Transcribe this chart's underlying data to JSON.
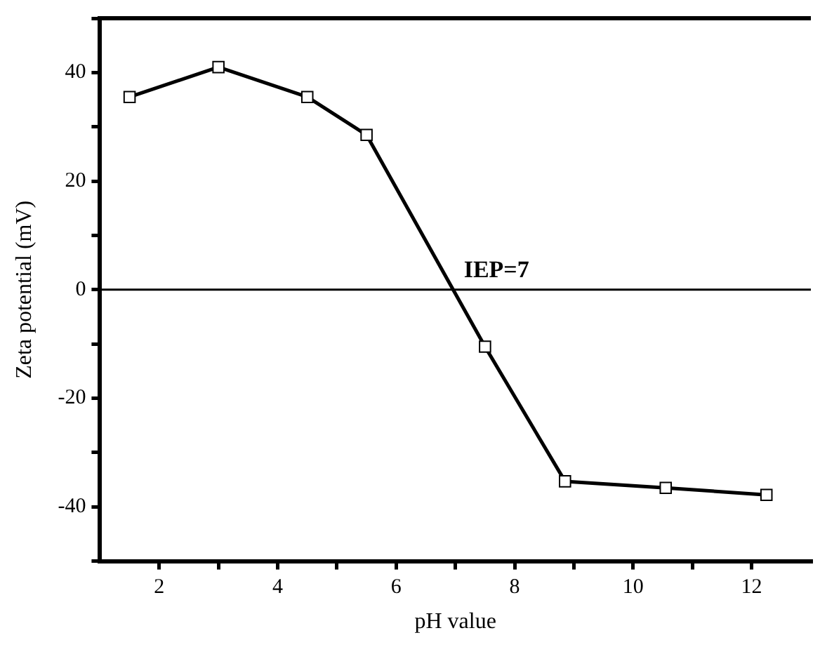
{
  "chart_data": {
    "type": "line",
    "xlabel": "pH value",
    "ylabel": "Zeta potential (mV)",
    "x": [
      1.5,
      3,
      4.5,
      5.5,
      7.5,
      8.85,
      10.55,
      12.25
    ],
    "series": [
      {
        "color": "#000000",
        "values": [
          35.5,
          41,
          35.5,
          28.5,
          -10.5,
          -35.3,
          -36.5,
          -37.8
        ]
      }
    ],
    "xlim": [
      1,
      13
    ],
    "xticks": [
      2,
      {
        "value": 3,
        "label": null
      },
      4,
      {
        "value": 5,
        "label": null
      },
      6,
      {
        "value": 7,
        "label": null
      },
      8,
      {
        "value": 9,
        "label": null
      },
      10,
      {
        "value": 11,
        "label": null
      },
      12
    ],
    "ylim": [
      -50,
      50
    ],
    "yticks": [
      {
        "value": -50,
        "label": null
      },
      -40,
      {
        "value": -30,
        "label": null
      },
      -20,
      {
        "value": -10,
        "label": null
      },
      0,
      {
        "value": 10,
        "label": null
      },
      20,
      {
        "value": 30,
        "label": null
      },
      40,
      {
        "value": 50,
        "label": null
      }
    ],
    "ref_lines": [
      {
        "axis": "y",
        "value": 0,
        "color": "#000000"
      }
    ],
    "annotations": [
      {
        "text": "IEP=7",
        "x": 7,
        "y": 0
      }
    ],
    "marker": "square",
    "line_style": "solid",
    "grid": false,
    "legend": false
  }
}
